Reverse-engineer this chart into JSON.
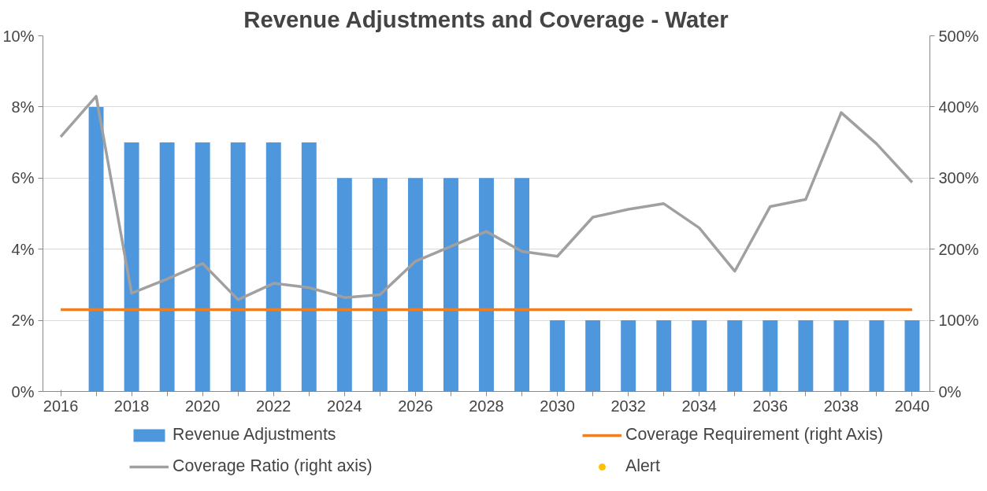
{
  "chart_data": {
    "type": "bar",
    "title": "Revenue Adjustments and Coverage - Water",
    "categories": [
      "2016",
      null,
      "2018",
      null,
      "2020",
      null,
      "2022",
      null,
      "2024",
      null,
      "2026",
      null,
      "2028",
      null,
      "2030",
      null,
      "2032",
      null,
      "2034",
      null,
      "2036",
      null,
      "2038",
      null,
      "2040"
    ],
    "series": [
      {
        "name": "Revenue Adjustments",
        "color": "#4f97dd",
        "values": [
          null,
          8,
          7,
          7,
          7,
          7,
          7,
          7,
          6,
          6,
          6,
          6,
          6,
          6,
          2,
          2,
          2,
          2,
          2,
          2,
          2,
          2,
          2,
          2,
          2
        ]
      },
      {
        "name": "Coverage Requirement (right Axis)",
        "type": "line",
        "axis": "y2",
        "color": "#f07f22",
        "values": [
          115,
          115,
          115,
          115,
          115,
          115,
          115,
          115,
          115,
          115,
          115,
          115,
          115,
          115,
          115,
          115,
          115,
          115,
          115,
          115,
          115,
          115,
          115,
          115,
          115
        ]
      },
      {
        "name": "Coverage Ratio (right axis)",
        "type": "line",
        "axis": "y2",
        "color": "#a0a0a0",
        "values": [
          358,
          415,
          138,
          158,
          180,
          129,
          152,
          146,
          132,
          136,
          183,
          204,
          225,
          197,
          190,
          245,
          256,
          264,
          230,
          169,
          260,
          270,
          392,
          348,
          294
        ]
      },
      {
        "name": "Alert",
        "type": "scatter",
        "axis": "y2",
        "color": "#ffc000",
        "values": [
          null,
          null,
          null,
          null,
          null,
          null,
          null,
          null,
          null,
          null,
          null,
          null,
          null,
          null,
          null,
          null,
          null,
          null,
          null,
          null,
          null,
          null,
          null,
          null,
          null
        ]
      }
    ],
    "ylim": [
      0,
      10
    ],
    "yticks": [
      {
        "value": 0,
        "label": "0%"
      },
      {
        "value": 2,
        "label": "2%"
      },
      {
        "value": 4,
        "label": "4%"
      },
      {
        "value": 6,
        "label": "6%"
      },
      {
        "value": 8,
        "label": "8%"
      },
      {
        "value": 10,
        "label": "10%"
      }
    ],
    "y2lim": [
      0,
      500
    ],
    "y2ticks": [
      {
        "value": 0,
        "label": "0%"
      },
      {
        "value": 100,
        "label": "100%"
      },
      {
        "value": 200,
        "label": "200%"
      },
      {
        "value": 300,
        "label": "300%"
      },
      {
        "value": 400,
        "label": "400%"
      },
      {
        "value": 500,
        "label": "500%"
      }
    ],
    "grid": "y",
    "legend": "bottom",
    "marker": "none",
    "line_style": "solid"
  }
}
